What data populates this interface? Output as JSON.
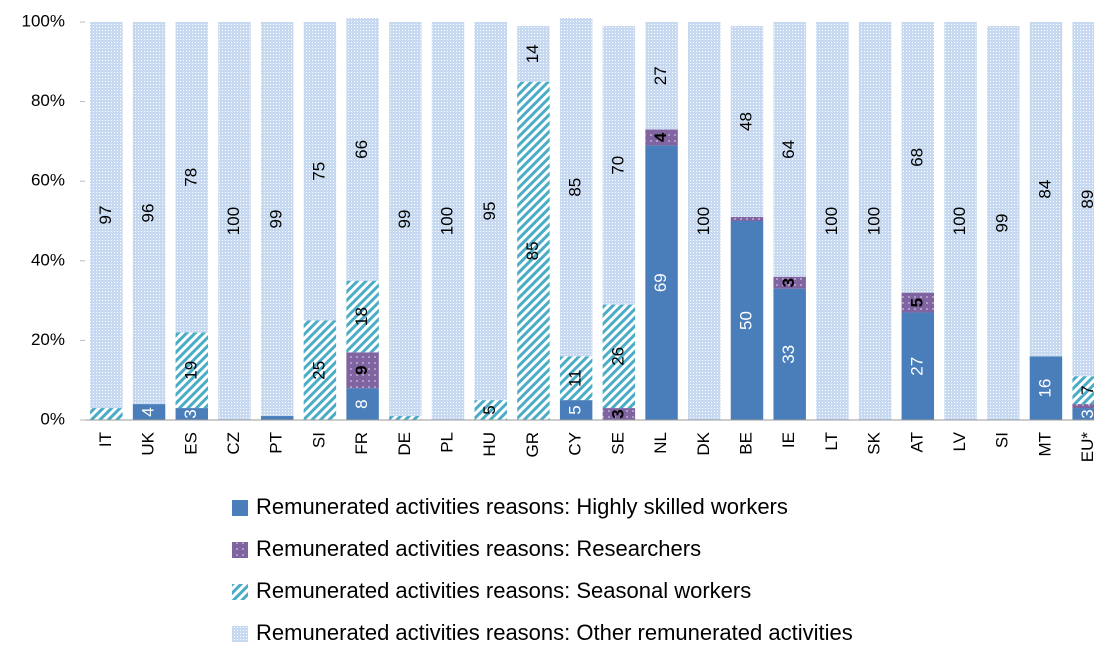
{
  "chart_data": {
    "type": "stacked_bar",
    "categories": [
      "IT",
      "UK",
      "ES",
      "CZ",
      "PT",
      "SI",
      "FR",
      "DE",
      "PL",
      "HU",
      "GR",
      "CY",
      "SE",
      "NL",
      "DK",
      "BE",
      "IE",
      "LT",
      "SK",
      "AT",
      "LV",
      "SI",
      "MT",
      "EU*"
    ],
    "ylim": [
      0,
      100
    ],
    "yticks": [
      {
        "value": 0,
        "label": "0%"
      },
      {
        "value": 20,
        "label": "20%"
      },
      {
        "value": 40,
        "label": "40%"
      },
      {
        "value": 60,
        "label": "60%"
      },
      {
        "value": 80,
        "label": "80%"
      },
      {
        "value": 100,
        "label": "100%"
      }
    ],
    "grid": false,
    "series": [
      {
        "name": "Remunerated activities reasons: Highly skilled workers",
        "color": "#4a7ebb",
        "fill_style": "solid",
        "values": [
          0,
          4,
          3,
          0,
          1,
          0,
          8,
          0,
          0,
          0,
          0,
          5,
          0,
          69,
          0,
          50,
          33,
          0,
          0,
          27,
          0,
          0,
          16,
          3
        ],
        "value_labels": [
          null,
          "4",
          "3",
          null,
          null,
          null,
          "8",
          null,
          null,
          null,
          null,
          "5",
          null,
          "69",
          null,
          "50",
          "33",
          null,
          null,
          "27",
          null,
          null,
          "16",
          "3"
        ]
      },
      {
        "name": "Remunerated activities reasons: Researchers",
        "color": "#8064a2",
        "fill_style": "dots",
        "values": [
          0,
          0,
          0,
          0,
          0,
          0,
          9,
          0,
          0,
          0,
          0,
          0,
          3,
          4,
          0,
          1,
          3,
          0,
          0,
          5,
          0,
          0,
          0,
          1
        ],
        "value_labels": [
          null,
          null,
          null,
          null,
          null,
          null,
          "9",
          null,
          null,
          null,
          null,
          null,
          "3",
          "4",
          null,
          null,
          "3",
          null,
          null,
          "5",
          null,
          null,
          null,
          null
        ]
      },
      {
        "name": "Remunerated activities reasons: Seasonal workers",
        "color": "#4bacc6",
        "fill_style": "hatch",
        "values": [
          3,
          0,
          19,
          0,
          0,
          25,
          18,
          1,
          0,
          5,
          85,
          11,
          26,
          0,
          0,
          0,
          0,
          0,
          0,
          0,
          0,
          0,
          0,
          7
        ],
        "value_labels": [
          null,
          null,
          "19",
          null,
          null,
          "25",
          "18",
          null,
          null,
          "5",
          "85",
          "11",
          "26",
          null,
          null,
          null,
          null,
          null,
          null,
          null,
          null,
          null,
          null,
          "7"
        ]
      },
      {
        "name": "Remunerated activities reasons: Other remunerated activities",
        "color": "#c6d9f1",
        "fill_style": "fine",
        "values": [
          97,
          96,
          78,
          100,
          99,
          75,
          66,
          99,
          100,
          95,
          14,
          85,
          70,
          27,
          100,
          48,
          64,
          100,
          100,
          68,
          100,
          99,
          84,
          89
        ],
        "value_labels": [
          "97",
          "96",
          "78",
          "100",
          "99",
          "75",
          "66",
          "99",
          "100",
          "95",
          "14",
          "85",
          "70",
          "27",
          "100",
          "48",
          "64",
          "100",
          "100",
          "68",
          "100",
          "99",
          "84",
          "89"
        ]
      }
    ],
    "legend": "bottom"
  }
}
